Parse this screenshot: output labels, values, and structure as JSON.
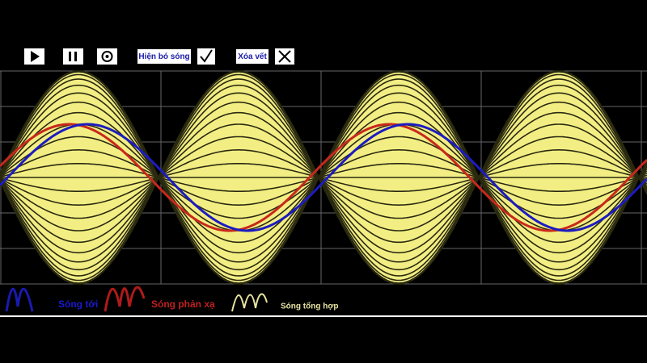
{
  "toolbar": {
    "show_envelope": "Hiện bó sóng",
    "clear_trace": "Xóa vết"
  },
  "legend": {
    "incident": "Sóng tới",
    "reflected": "Sóng phản xạ",
    "resultant": "Sóng tổng hợp"
  }
}
